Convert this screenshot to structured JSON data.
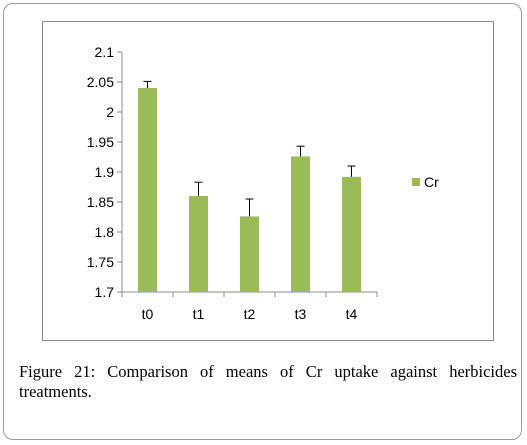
{
  "chart_data": {
    "type": "bar",
    "categories": [
      "t0",
      "t1",
      "t2",
      "t3",
      "t4"
    ],
    "series": [
      {
        "name": "Cr",
        "values": [
          2.04,
          1.86,
          1.826,
          1.926,
          1.892
        ],
        "errors": [
          0.011,
          0.023,
          0.029,
          0.017,
          0.018
        ]
      }
    ],
    "y_ticks": [
      "1.7",
      "1.75",
      "1.8",
      "1.85",
      "1.9",
      "1.95",
      "2",
      "2.05",
      "2.1"
    ],
    "ylim": [
      1.7,
      2.1
    ],
    "legend_position": "right",
    "bar_color": "#9bbb59",
    "grid": false
  },
  "caption": {
    "label": "Figure 21:",
    "text": "Comparison of means of Cr uptake against herbicides treatments."
  }
}
